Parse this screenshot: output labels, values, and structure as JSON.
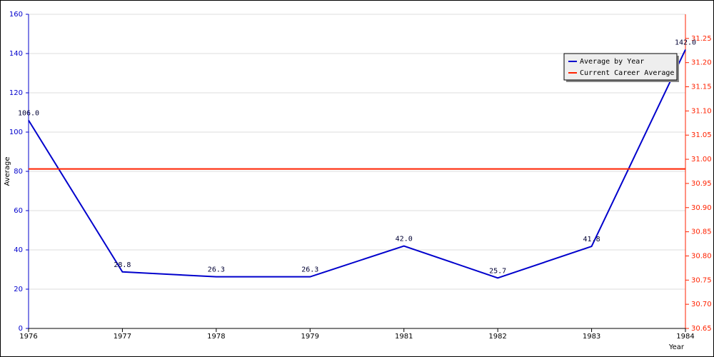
{
  "chart_data": {
    "type": "line",
    "categories": [
      "1976",
      "1977",
      "1978",
      "1979",
      "1981",
      "1982",
      "1983",
      "1984"
    ],
    "series": [
      {
        "name": "Average by Year",
        "color": "#0000cc",
        "axis": "y",
        "values": [
          106.0,
          28.8,
          26.3,
          26.3,
          42.0,
          25.7,
          41.8,
          142.0
        ],
        "value_labels": [
          "106.0",
          "28.8",
          "26.3",
          "26.3",
          "42.0",
          "25.7",
          "41.8",
          "142.0"
        ]
      },
      {
        "name": "Current Career Average",
        "color": "#ff2200",
        "axis": "y2",
        "values": [
          30.98,
          30.98,
          30.98,
          30.98,
          30.98,
          30.98,
          30.98,
          30.98
        ]
      }
    ],
    "ylabel": "Average",
    "xlabel": "Year",
    "ylim": [
      0,
      160
    ],
    "yticks": [
      0,
      20,
      40,
      60,
      80,
      100,
      120,
      140,
      160
    ],
    "y2lim": [
      30.65,
      31.3
    ],
    "y2ticks": [
      30.65,
      {
        "value": 30.7,
        "label": "30.70"
      },
      30.75,
      {
        "value": 30.8,
        "label": "30.80"
      },
      30.85,
      {
        "value": 30.9,
        "label": "30.90"
      },
      30.95,
      {
        "value": 31.0,
        "label": "31.00"
      },
      31.05,
      {
        "value": 31.1,
        "label": "31.10"
      },
      31.15,
      {
        "value": 31.2,
        "label": "31.20"
      },
      31.25
    ],
    "grid": true,
    "legend": "upper right"
  }
}
